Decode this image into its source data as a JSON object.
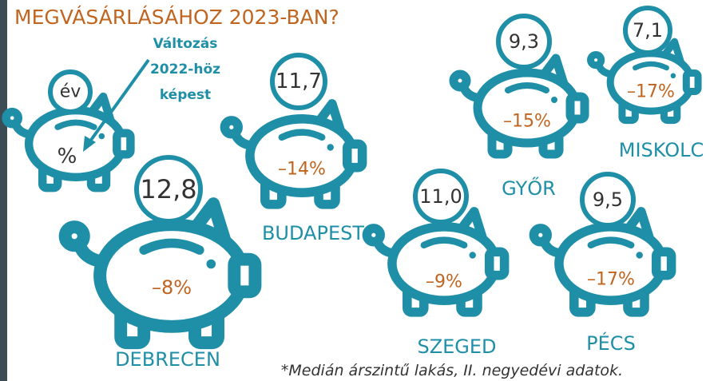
{
  "title": "MEGVÁSÁRLÁSÁHOZ 2023-BAN?",
  "legend": {
    "coin": "év",
    "change": "%",
    "note": [
      "Változás",
      "2022-höz",
      "képest"
    ]
  },
  "cities": [
    {
      "name": "BUDAPEST",
      "years": "11,7",
      "change": "–14%"
    },
    {
      "name": "DEBRECEN",
      "years": "12,8",
      "change": "–8%"
    },
    {
      "name": "GYŐR",
      "years": "9,3",
      "change": "–15%"
    },
    {
      "name": "MISKOLC",
      "years": "7,1",
      "change": "–17%"
    },
    {
      "name": "SZEGED",
      "years": "11,0",
      "change": "–9%"
    },
    {
      "name": "PÉCS",
      "years": "9,5",
      "change": "–17%"
    }
  ],
  "footnote": "*Medián árszintű lakás, II. negyedévi adatok."
}
